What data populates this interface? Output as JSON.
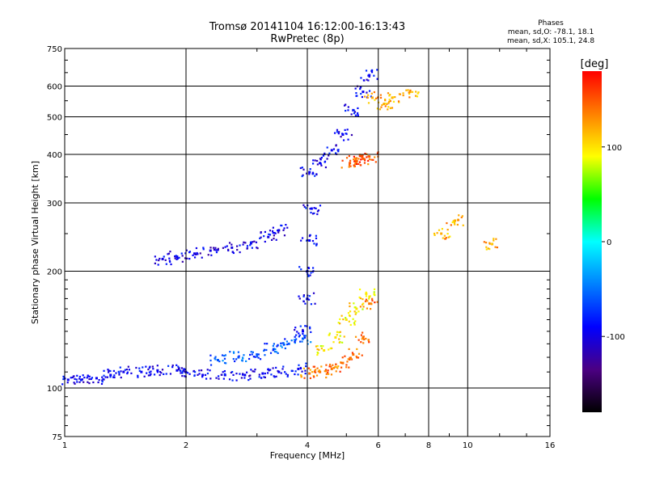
{
  "header": {
    "title_line1": "Tromsø 20141104 16:12:00-16:13:43",
    "title_line2": "RwPretec (8p)"
  },
  "legend_info": {
    "heading": "Phases",
    "line1": "mean, sd,O: -78.1, 18.1",
    "line2": "mean, sd,X: 105.1, 24.8"
  },
  "chart_data": {
    "type": "scatter",
    "xlabel": "Frequency [MHz]",
    "ylabel": "Stationary phase Virtual Height [km]",
    "x_scale": "log",
    "y_scale": "log",
    "xlim": [
      1,
      16
    ],
    "ylim": [
      75,
      750
    ],
    "x_ticks": [
      1,
      2,
      4,
      6,
      8,
      10,
      16
    ],
    "y_ticks": [
      75,
      100,
      200,
      300,
      400,
      500,
      600,
      750
    ],
    "x_gridlines": [
      2,
      4,
      6,
      8,
      10
    ],
    "y_gridlines": [
      100,
      200,
      300,
      400,
      500,
      600
    ],
    "grid": true,
    "colorbar": {
      "label": "[deg]",
      "range": [
        -180,
        180
      ],
      "ticks": [
        -100,
        0,
        100
      ],
      "colors": [
        "#000000",
        "#4b0082",
        "#0000ff",
        "#0080ff",
        "#00ffff",
        "#00ff00",
        "#ffff00",
        "#ff8000",
        "#ff0000"
      ]
    },
    "series": [
      {
        "x": [
          1.02,
          1.1,
          1.2,
          1.3,
          1.4,
          1.55,
          1.7,
          1.9,
          2.0,
          2.2,
          2.5,
          2.8,
          3.1,
          3.4,
          3.8
        ],
        "y": [
          105,
          105,
          106,
          108,
          110,
          110,
          111,
          111,
          110,
          108,
          108,
          108,
          109,
          110,
          112
        ],
        "phase": -95
      },
      {
        "x": [
          2.4,
          2.7,
          3.0,
          3.3,
          3.6,
          3.9
        ],
        "y": [
          118,
          120,
          122,
          126,
          130,
          134
        ],
        "phase": -60
      },
      {
        "x": [
          1.75,
          1.9,
          2.1,
          2.3,
          2.6,
          2.9,
          3.2,
          3.4
        ],
        "y": [
          215,
          218,
          222,
          226,
          230,
          236,
          245,
          255
        ],
        "phase": -100
      },
      {
        "x": [
          4.05,
          4.3,
          4.6,
          4.9,
          5.2,
          5.5,
          5.7
        ],
        "y": [
          109,
          110,
          112,
          116,
          122,
          135,
          165
        ],
        "phase": 140
      },
      {
        "x": [
          4.4,
          4.7,
          5.0,
          5.3,
          5.6
        ],
        "y": [
          125,
          135,
          150,
          160,
          175
        ],
        "phase": 100
      },
      {
        "x": [
          3.9,
          4.0,
          4.0,
          4.05,
          4.1
        ],
        "y": [
          140,
          170,
          200,
          240,
          290
        ],
        "phase": -90
      },
      {
        "x": [
          4.05,
          4.3,
          4.6,
          4.9,
          5.2,
          5.5,
          5.7
        ],
        "y": [
          360,
          380,
          410,
          450,
          520,
          580,
          640
        ],
        "phase": -95
      },
      {
        "x": [
          5.1,
          5.3,
          5.5,
          5.7
        ],
        "y": [
          380,
          385,
          390,
          395
        ],
        "phase": 150
      },
      {
        "x": [
          5.8,
          6.2,
          6.5,
          7.2,
          8.6,
          9.3,
          11.5
        ],
        "y": [
          560,
          540,
          560,
          580,
          250,
          270,
          235
        ],
        "phase": 120
      }
    ]
  }
}
